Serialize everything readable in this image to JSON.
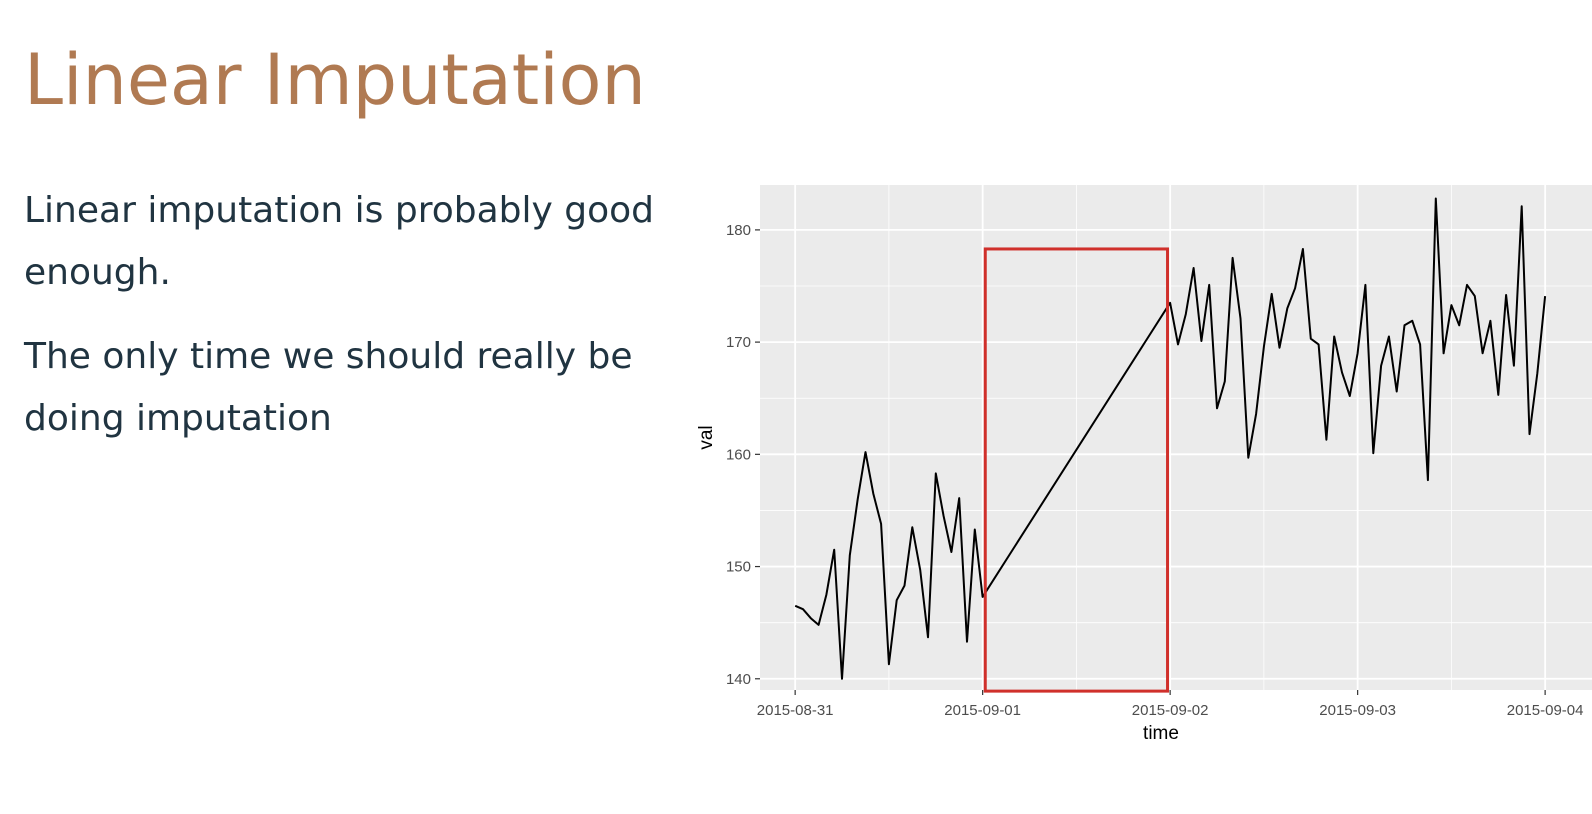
{
  "slide": {
    "title": "Linear Imputation",
    "paragraphs": [
      "Linear imputation is probably good enough.",
      "The only time we should really be doing imputation"
    ]
  },
  "colors": {
    "title": "#b07a52",
    "body_text": "#203441",
    "panel_background": "#ebebeb",
    "gridline": "#ffffff",
    "series_line": "#000000",
    "highlight_box": "#d0302b"
  },
  "chart_data": {
    "type": "line",
    "title": "",
    "xlabel": "time",
    "ylabel": "val",
    "grid": true,
    "legend": "none",
    "x_tick_labels": [
      "2015-08-31",
      "2015-09-01",
      "2015-09-02",
      "2015-09-03",
      "2015-09-04"
    ],
    "y_tick_labels": [
      "140",
      "150",
      "160",
      "170",
      "180"
    ],
    "ylim": [
      139,
      184
    ],
    "xlim": [
      "2015-08-30T19:30",
      "2015-09-04T06:00"
    ],
    "series": [
      {
        "color": "#000000",
        "points": [
          [
            "2015-08-31T00:00",
            146.5
          ],
          [
            "2015-08-31T01:00",
            146.2
          ],
          [
            "2015-08-31T02:00",
            145.4
          ],
          [
            "2015-08-31T03:00",
            144.8
          ],
          [
            "2015-08-31T04:00",
            147.5
          ],
          [
            "2015-08-31T05:00",
            151.5
          ],
          [
            "2015-08-31T06:00",
            140.0
          ],
          [
            "2015-08-31T07:00",
            151.0
          ],
          [
            "2015-08-31T08:00",
            156.0
          ],
          [
            "2015-08-31T09:00",
            160.2
          ],
          [
            "2015-08-31T10:00",
            156.5
          ],
          [
            "2015-08-31T11:00",
            153.8
          ],
          [
            "2015-08-31T12:00",
            141.3
          ],
          [
            "2015-08-31T13:00",
            147.0
          ],
          [
            "2015-08-31T14:00",
            148.3
          ],
          [
            "2015-08-31T15:00",
            153.5
          ],
          [
            "2015-08-31T16:00",
            149.7
          ],
          [
            "2015-08-31T17:00",
            143.7
          ],
          [
            "2015-08-31T18:00",
            158.3
          ],
          [
            "2015-08-31T19:00",
            154.5
          ],
          [
            "2015-08-31T20:00",
            151.3
          ],
          [
            "2015-08-31T21:00",
            156.1
          ],
          [
            "2015-08-31T22:00",
            143.3
          ],
          [
            "2015-08-31T23:00",
            153.3
          ],
          [
            "2015-09-01T00:00",
            147.3
          ],
          [
            "2015-09-02T00:00",
            173.5
          ],
          [
            "2015-09-02T01:00",
            169.8
          ],
          [
            "2015-09-02T02:00",
            172.5
          ],
          [
            "2015-09-02T03:00",
            176.6
          ],
          [
            "2015-09-02T04:00",
            170.1
          ],
          [
            "2015-09-02T05:00",
            175.1
          ],
          [
            "2015-09-02T06:00",
            164.1
          ],
          [
            "2015-09-02T07:00",
            166.5
          ],
          [
            "2015-09-02T08:00",
            177.5
          ],
          [
            "2015-09-02T09:00",
            172.1
          ],
          [
            "2015-09-02T10:00",
            159.7
          ],
          [
            "2015-09-02T11:00",
            163.6
          ],
          [
            "2015-09-02T12:00",
            169.6
          ],
          [
            "2015-09-02T13:00",
            174.3
          ],
          [
            "2015-09-02T14:00",
            169.5
          ],
          [
            "2015-09-02T15:00",
            173.0
          ],
          [
            "2015-09-02T16:00",
            174.8
          ],
          [
            "2015-09-02T17:00",
            178.3
          ],
          [
            "2015-09-02T18:00",
            170.3
          ],
          [
            "2015-09-02T19:00",
            169.8
          ],
          [
            "2015-09-02T20:00",
            161.3
          ],
          [
            "2015-09-02T21:00",
            170.5
          ],
          [
            "2015-09-02T22:00",
            167.3
          ],
          [
            "2015-09-02T23:00",
            165.2
          ],
          [
            "2015-09-03T00:00",
            169.0
          ],
          [
            "2015-09-03T01:00",
            175.1
          ],
          [
            "2015-09-03T02:00",
            160.1
          ],
          [
            "2015-09-03T03:00",
            167.9
          ],
          [
            "2015-09-03T04:00",
            170.5
          ],
          [
            "2015-09-03T05:00",
            165.6
          ],
          [
            "2015-09-03T06:00",
            171.5
          ],
          [
            "2015-09-03T07:00",
            171.9
          ],
          [
            "2015-09-03T08:00",
            169.8
          ],
          [
            "2015-09-03T09:00",
            157.7
          ],
          [
            "2015-09-03T10:00",
            182.8
          ],
          [
            "2015-09-03T11:00",
            169.0
          ],
          [
            "2015-09-03T12:00",
            173.3
          ],
          [
            "2015-09-03T13:00",
            171.5
          ],
          [
            "2015-09-03T14:00",
            175.1
          ],
          [
            "2015-09-03T15:00",
            174.1
          ],
          [
            "2015-09-03T16:00",
            169.0
          ],
          [
            "2015-09-03T17:00",
            171.9
          ],
          [
            "2015-09-03T18:00",
            165.3
          ],
          [
            "2015-09-03T19:00",
            174.2
          ],
          [
            "2015-09-03T20:00",
            167.9
          ],
          [
            "2015-09-03T21:00",
            182.1
          ],
          [
            "2015-09-03T22:00",
            161.8
          ],
          [
            "2015-09-03T23:00",
            167.2
          ],
          [
            "2015-09-04T00:00",
            174.1
          ]
        ]
      }
    ],
    "highlight_region": {
      "x_start": "2015-09-01T00:20",
      "x_end": "2015-09-01T23:40",
      "y_bottom": 138.9,
      "y_top": 178.3
    }
  }
}
